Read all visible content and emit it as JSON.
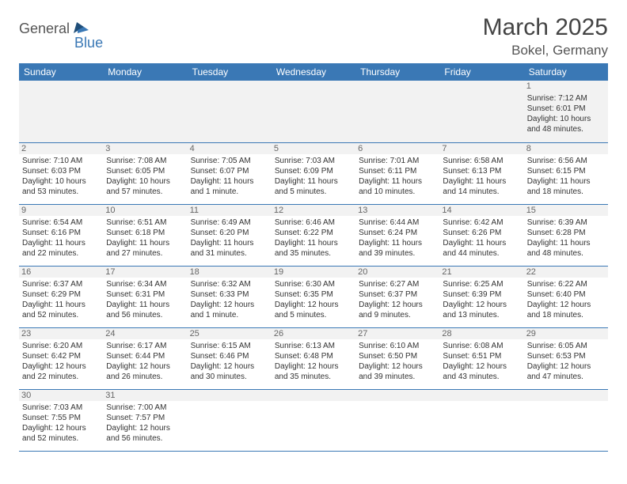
{
  "logo": {
    "part1": "General",
    "part2": "Blue"
  },
  "title": "March 2025",
  "location": "Bokel, Germany",
  "colors": {
    "header_bg": "#3a78b5",
    "header_text": "#ffffff",
    "rule": "#3a78b5",
    "shade": "#f2f2f2",
    "body_text": "#333333"
  },
  "weekdays": [
    "Sunday",
    "Monday",
    "Tuesday",
    "Wednesday",
    "Thursday",
    "Friday",
    "Saturday"
  ],
  "days": [
    {
      "n": 1,
      "sunrise": "7:12 AM",
      "sunset": "6:01 PM",
      "daylight": "10 hours and 48 minutes."
    },
    {
      "n": 2,
      "sunrise": "7:10 AM",
      "sunset": "6:03 PM",
      "daylight": "10 hours and 53 minutes."
    },
    {
      "n": 3,
      "sunrise": "7:08 AM",
      "sunset": "6:05 PM",
      "daylight": "10 hours and 57 minutes."
    },
    {
      "n": 4,
      "sunrise": "7:05 AM",
      "sunset": "6:07 PM",
      "daylight": "11 hours and 1 minute."
    },
    {
      "n": 5,
      "sunrise": "7:03 AM",
      "sunset": "6:09 PM",
      "daylight": "11 hours and 5 minutes."
    },
    {
      "n": 6,
      "sunrise": "7:01 AM",
      "sunset": "6:11 PM",
      "daylight": "11 hours and 10 minutes."
    },
    {
      "n": 7,
      "sunrise": "6:58 AM",
      "sunset": "6:13 PM",
      "daylight": "11 hours and 14 minutes."
    },
    {
      "n": 8,
      "sunrise": "6:56 AM",
      "sunset": "6:15 PM",
      "daylight": "11 hours and 18 minutes."
    },
    {
      "n": 9,
      "sunrise": "6:54 AM",
      "sunset": "6:16 PM",
      "daylight": "11 hours and 22 minutes."
    },
    {
      "n": 10,
      "sunrise": "6:51 AM",
      "sunset": "6:18 PM",
      "daylight": "11 hours and 27 minutes."
    },
    {
      "n": 11,
      "sunrise": "6:49 AM",
      "sunset": "6:20 PM",
      "daylight": "11 hours and 31 minutes."
    },
    {
      "n": 12,
      "sunrise": "6:46 AM",
      "sunset": "6:22 PM",
      "daylight": "11 hours and 35 minutes."
    },
    {
      "n": 13,
      "sunrise": "6:44 AM",
      "sunset": "6:24 PM",
      "daylight": "11 hours and 39 minutes."
    },
    {
      "n": 14,
      "sunrise": "6:42 AM",
      "sunset": "6:26 PM",
      "daylight": "11 hours and 44 minutes."
    },
    {
      "n": 15,
      "sunrise": "6:39 AM",
      "sunset": "6:28 PM",
      "daylight": "11 hours and 48 minutes."
    },
    {
      "n": 16,
      "sunrise": "6:37 AM",
      "sunset": "6:29 PM",
      "daylight": "11 hours and 52 minutes."
    },
    {
      "n": 17,
      "sunrise": "6:34 AM",
      "sunset": "6:31 PM",
      "daylight": "11 hours and 56 minutes."
    },
    {
      "n": 18,
      "sunrise": "6:32 AM",
      "sunset": "6:33 PM",
      "daylight": "12 hours and 1 minute."
    },
    {
      "n": 19,
      "sunrise": "6:30 AM",
      "sunset": "6:35 PM",
      "daylight": "12 hours and 5 minutes."
    },
    {
      "n": 20,
      "sunrise": "6:27 AM",
      "sunset": "6:37 PM",
      "daylight": "12 hours and 9 minutes."
    },
    {
      "n": 21,
      "sunrise": "6:25 AM",
      "sunset": "6:39 PM",
      "daylight": "12 hours and 13 minutes."
    },
    {
      "n": 22,
      "sunrise": "6:22 AM",
      "sunset": "6:40 PM",
      "daylight": "12 hours and 18 minutes."
    },
    {
      "n": 23,
      "sunrise": "6:20 AM",
      "sunset": "6:42 PM",
      "daylight": "12 hours and 22 minutes."
    },
    {
      "n": 24,
      "sunrise": "6:17 AM",
      "sunset": "6:44 PM",
      "daylight": "12 hours and 26 minutes."
    },
    {
      "n": 25,
      "sunrise": "6:15 AM",
      "sunset": "6:46 PM",
      "daylight": "12 hours and 30 minutes."
    },
    {
      "n": 26,
      "sunrise": "6:13 AM",
      "sunset": "6:48 PM",
      "daylight": "12 hours and 35 minutes."
    },
    {
      "n": 27,
      "sunrise": "6:10 AM",
      "sunset": "6:50 PM",
      "daylight": "12 hours and 39 minutes."
    },
    {
      "n": 28,
      "sunrise": "6:08 AM",
      "sunset": "6:51 PM",
      "daylight": "12 hours and 43 minutes."
    },
    {
      "n": 29,
      "sunrise": "6:05 AM",
      "sunset": "6:53 PM",
      "daylight": "12 hours and 47 minutes."
    },
    {
      "n": 30,
      "sunrise": "7:03 AM",
      "sunset": "7:55 PM",
      "daylight": "12 hours and 52 minutes."
    },
    {
      "n": 31,
      "sunrise": "7:00 AM",
      "sunset": "7:57 PM",
      "daylight": "12 hours and 56 minutes."
    }
  ],
  "layout": {
    "first_weekday_index": 6,
    "rows": 6,
    "cols": 7
  }
}
